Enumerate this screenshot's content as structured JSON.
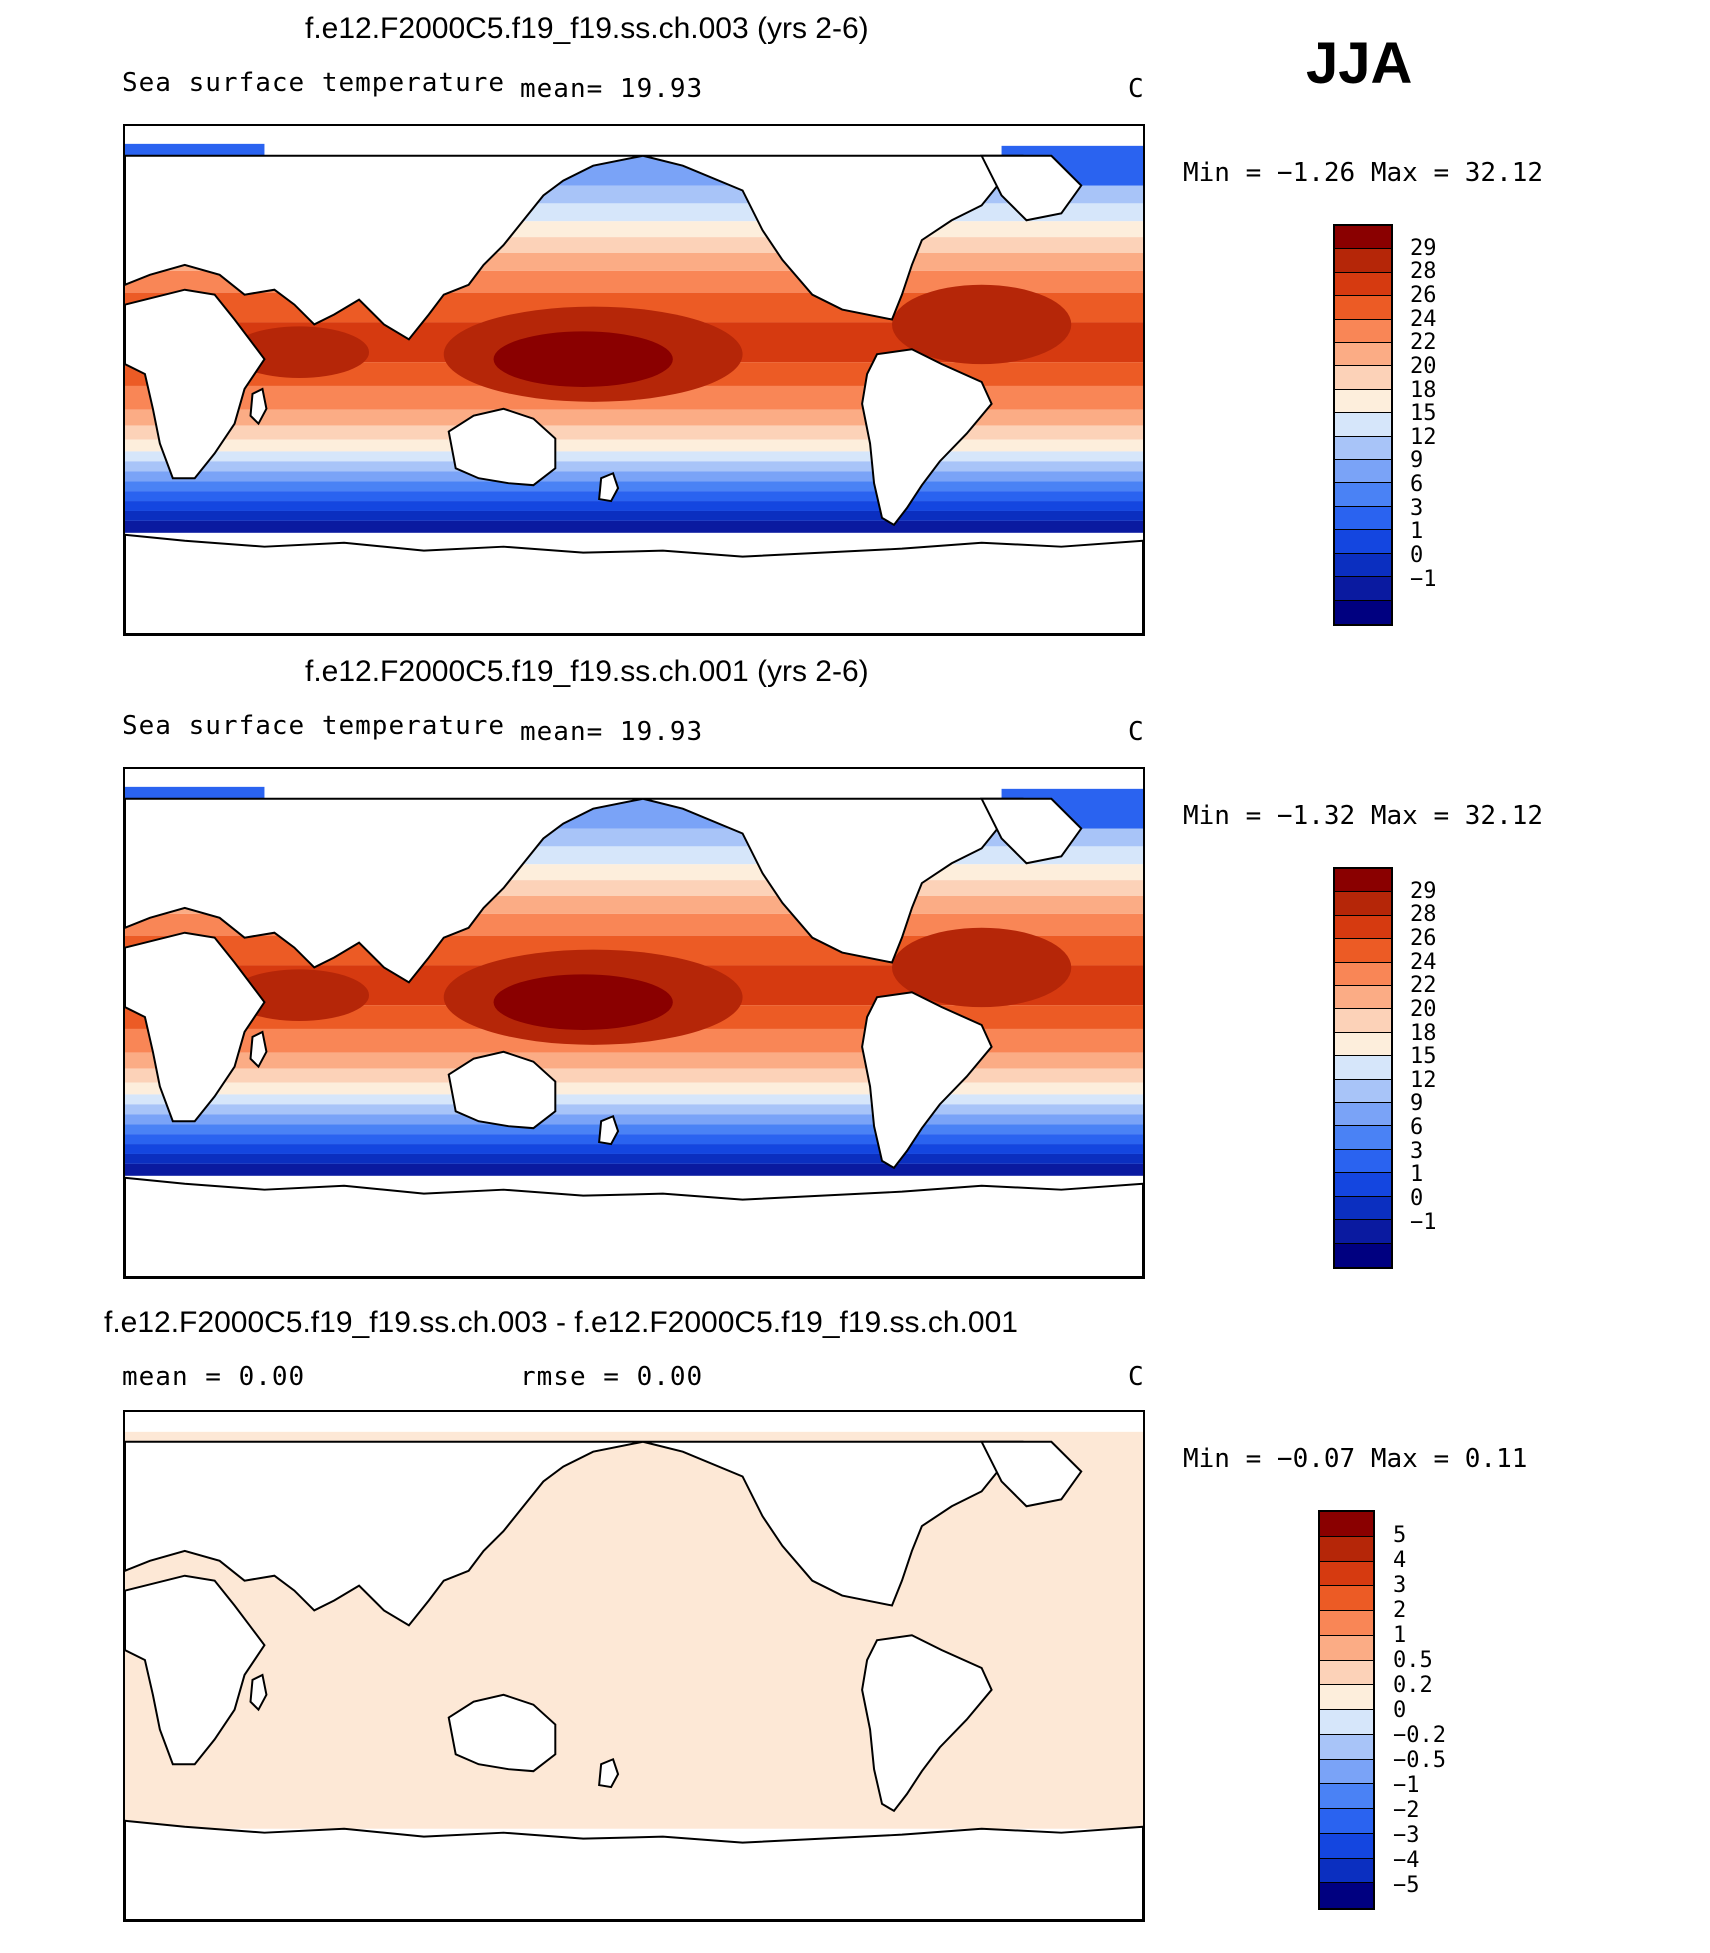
{
  "season": "JJA",
  "colors": {
    "sst_scale": [
      "#000080",
      "#0a1aa0",
      "#0b2fc0",
      "#1446e0",
      "#2a63f0",
      "#4a82f5",
      "#7aa3f7",
      "#a8c4f8",
      "#d6e6fa",
      "#fdeedc",
      "#fcd2b8",
      "#fbac85",
      "#f98656",
      "#ec5b25",
      "#d63a10",
      "#b52608",
      "#8a0000"
    ],
    "diff_scale": [
      "#000080",
      "#0b2fc0",
      "#1446e0",
      "#2a63f0",
      "#4a82f5",
      "#7aa3f7",
      "#a8c4f8",
      "#d6e6fa",
      "#fdeedc",
      "#fcd2b8",
      "#fbac85",
      "#f98656",
      "#ec5b25",
      "#d63a10",
      "#b52608",
      "#8a0000"
    ],
    "land": "#ffffff",
    "coast": "#000000",
    "diff_ocean": "#fde8d6"
  },
  "panels": [
    {
      "title": "f.e12.F2000C5.f19_f19.ss.ch.003 (yrs 2-6)",
      "left_label": "Sea surface temperature",
      "mean_label": "mean=   19.93",
      "units": "C",
      "min_max": "Min =   −1.26 Max =   32.12",
      "ticks": [
        "29",
        "28",
        "26",
        "24",
        "22",
        "20",
        "18",
        "15",
        "12",
        "9",
        "6",
        "3",
        "1",
        "0",
        "−1"
      ]
    },
    {
      "title": "f.e12.F2000C5.f19_f19.ss.ch.001 (yrs 2-6)",
      "left_label": "Sea surface temperature",
      "mean_label": "mean=   19.93",
      "units": "C",
      "min_max": "Min =   −1.32 Max =   32.12",
      "ticks": [
        "29",
        "28",
        "26",
        "24",
        "22",
        "20",
        "18",
        "15",
        "12",
        "9",
        "6",
        "3",
        "1",
        "0",
        "−1"
      ]
    },
    {
      "title": "f.e12.F2000C5.f19_f19.ss.ch.003 - f.e12.F2000C5.f19_f19.ss.ch.001",
      "left_label": "mean =    0.00",
      "mean_label": "rmse =    0.00",
      "units": "C",
      "min_max": "Min =   −0.07 Max =    0.11",
      "ticks": [
        "5",
        "4",
        "3",
        "2",
        "1",
        "0.5",
        "0.2",
        "0",
        "−0.2",
        "−0.5",
        "−1",
        "−2",
        "−3",
        "−4",
        "−5"
      ]
    }
  ]
}
